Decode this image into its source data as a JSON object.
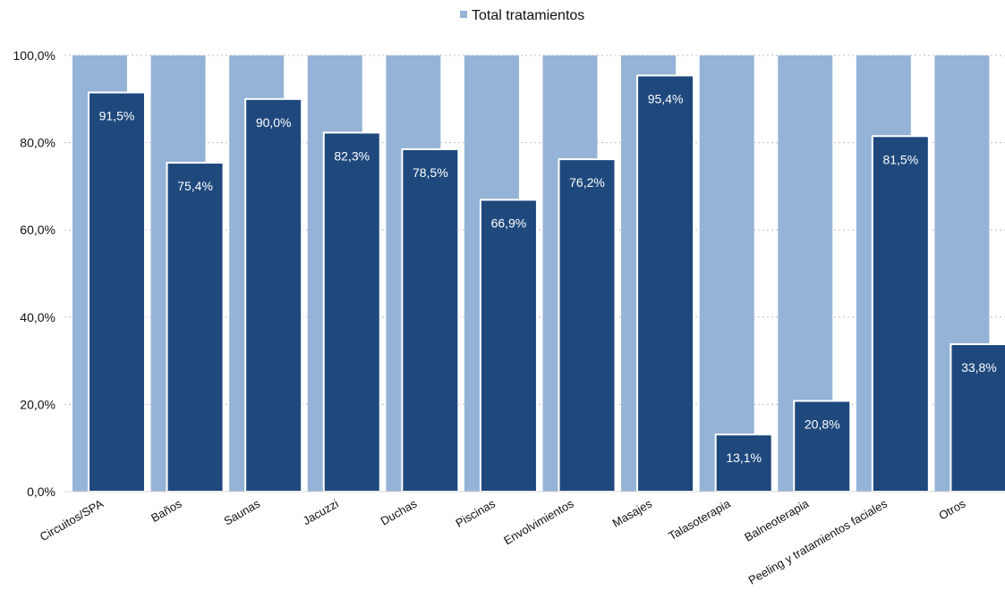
{
  "chart_data": {
    "type": "bar",
    "legend": {
      "position": "top-center",
      "entries": [
        "Total tratamientos"
      ]
    },
    "categories": [
      "Circuitos/SPA",
      "Baños",
      "Saunas",
      "Jacuzzi",
      "Duchas",
      "Piscinas",
      "Envolvimientos",
      "Masajes",
      "Talasoterapia",
      "Balneoterapia",
      "Peeling y tratamientos faciales",
      "Otros"
    ],
    "series": [
      {
        "name": "Total tratamientos",
        "values": [
          100,
          100,
          100,
          100,
          100,
          100,
          100,
          100,
          100,
          100,
          100,
          100
        ],
        "color": "#95b3d7"
      },
      {
        "values": [
          91.5,
          75.4,
          90.0,
          82.3,
          78.5,
          66.9,
          76.2,
          95.4,
          13.1,
          20.8,
          81.5,
          33.8
        ],
        "color": "#1f497d"
      }
    ],
    "data_labels": [
      "91,5%",
      "75,4%",
      "90,0%",
      "82,3%",
      "78,5%",
      "66,9%",
      "76,2%",
      "95,4%",
      "13,1%",
      "20,8%",
      "81,5%",
      "33,8%"
    ],
    "y_ticks": [
      "0,0%",
      "20,0%",
      "40,0%",
      "60,0%",
      "80,0%",
      "100,0%"
    ],
    "ylim": [
      0,
      100
    ],
    "grid": true
  }
}
